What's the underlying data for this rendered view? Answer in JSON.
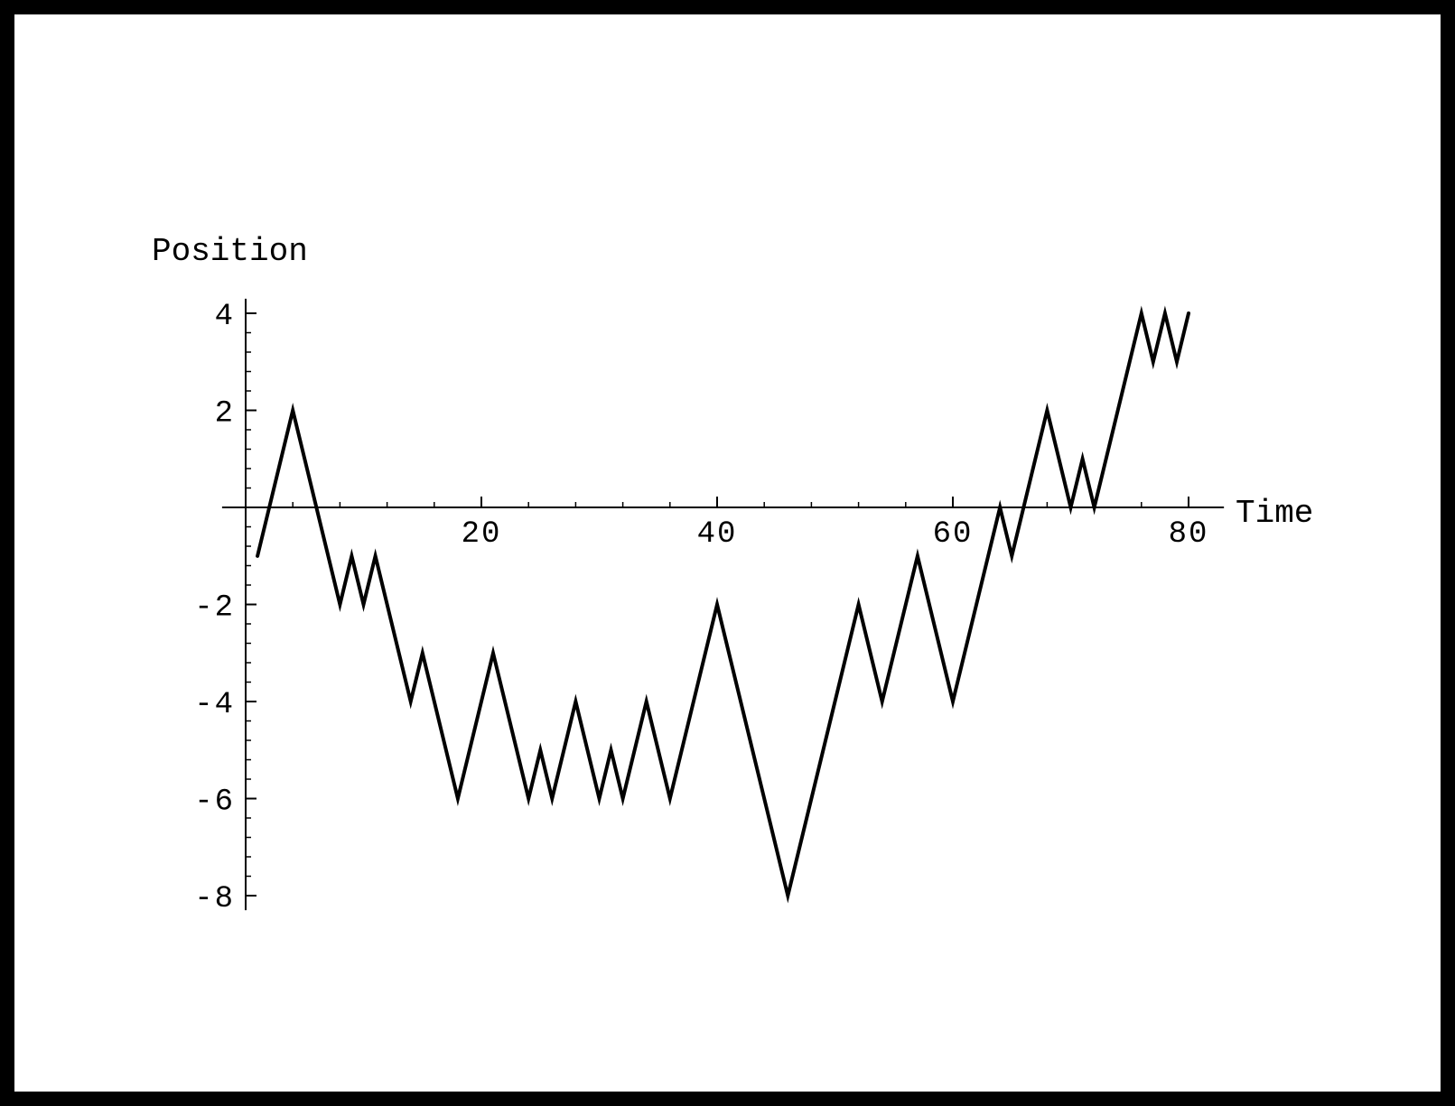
{
  "chart_data": {
    "type": "line",
    "title": "",
    "xlabel": "Time",
    "ylabel": "Position",
    "xlim": [
      -2,
      83
    ],
    "ylim": [
      -8.3,
      4.3
    ],
    "grid": false,
    "x_ticks": [
      20,
      40,
      60,
      80
    ],
    "x_tick_labels": [
      "20",
      "40",
      "60",
      "80"
    ],
    "y_ticks": [
      4,
      2,
      -2,
      -4,
      -6,
      -8
    ],
    "y_tick_labels": [
      "4",
      "2",
      "-2",
      "-4",
      "-6",
      "-8"
    ],
    "x_minor_step": 4,
    "y_minor_step": 0.4,
    "line_color": "#000000",
    "series": [
      {
        "x": [
          1,
          4,
          5,
          8,
          9,
          10,
          11,
          14,
          15,
          18,
          21,
          24,
          25,
          26,
          28,
          30,
          31,
          32,
          34,
          36,
          40,
          46,
          52,
          54,
          57,
          60,
          64,
          65,
          68,
          70,
          71,
          72,
          76,
          77,
          78,
          79,
          80
        ],
        "values": [
          -1,
          2,
          1,
          -2,
          -1,
          -2,
          -1,
          -4,
          -3,
          -6,
          -3,
          -6,
          -5,
          -6,
          -4,
          -6,
          -5,
          -6,
          -4,
          -6,
          -2,
          -8,
          -2,
          -4,
          -1,
          -4,
          0,
          -1,
          2,
          0,
          1,
          0,
          4,
          3,
          4,
          3,
          4
        ]
      }
    ]
  }
}
